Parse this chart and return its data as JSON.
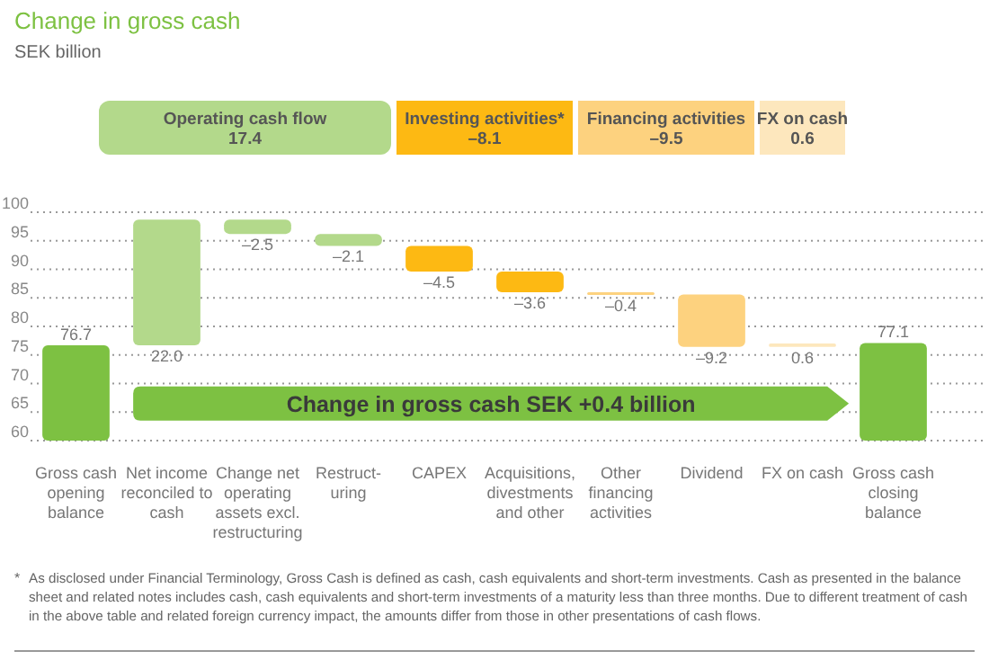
{
  "chart_data": {
    "type": "bar",
    "title": "Change in gross cash",
    "subtitle": "SEK billion",
    "categories": [
      "Gross cash opening balance",
      "Net income reconciled to cash",
      "Change net operating assets excl. restructuring",
      "Restruct-uring",
      "CAPEX",
      "Acquisitions, divestments and other",
      "Other financing activities",
      "Dividend",
      "FX on cash",
      "Gross cash closing balance"
    ],
    "values": [
      76.7,
      22.0,
      -2.5,
      -2.1,
      -4.5,
      -3.6,
      -0.4,
      -9.2,
      0.6,
      77.1
    ],
    "base": [
      null,
      76.7,
      98.7,
      96.2,
      94.1,
      89.6,
      86.0,
      85.6,
      76.4,
      null
    ],
    "colors": [
      "#7dc142",
      "#b3d98b",
      "#b3d98b",
      "#b3d98b",
      "#fdb913",
      "#fdb913",
      "#fdd27f",
      "#fdd27f",
      "#fde7bd",
      "#7dc142"
    ],
    "value_labels": [
      "76.7",
      "22.0",
      "–2.5",
      "–2.1",
      "–4.5",
      "–3.6",
      "–0.4",
      "–9.2",
      "0.6",
      "77.1"
    ],
    "ylim": [
      60,
      100
    ],
    "yticks": [
      60,
      65,
      70,
      75,
      80,
      85,
      90,
      95,
      100
    ],
    "grid": "y",
    "annotations": [
      "Operating cash flow\n17.4",
      "Investing activities*\n–8.1",
      "Financing activities\n–9.5",
      "FX on cash\n0.6",
      "Change in gross cash SEK +0.4 billion",
      "* As disclosed under Financial Terminology, Gross Cash is defined as cash, cash equivalents and short-term investments. Cash as presented in the balance sheet and related notes includes cash, cash equivalents and short-term investments of a maturity less than three months. Due to different treatment of cash in the above table and related foreign currency impact, the amounts differ from those in other presentations of cash flows."
    ]
  }
}
